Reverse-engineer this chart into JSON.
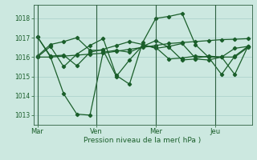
{
  "background_color": "#cce8e0",
  "grid_color": "#a8cfc8",
  "line_color": "#1a5e2a",
  "xlabel": "Pression niveau de la mer( hPa )",
  "ylim": [
    1012.5,
    1018.7
  ],
  "yticks": [
    1013,
    1014,
    1015,
    1016,
    1017,
    1018
  ],
  "xtick_labels": [
    "Mar",
    "Ven",
    "Mer",
    "Jeu"
  ],
  "series": [
    {
      "x": [
        0,
        1,
        2,
        3,
        4,
        5,
        6,
        7,
        8,
        9,
        10,
        11,
        12,
        13,
        14,
        15,
        16
      ],
      "y": [
        1017.05,
        1016.0,
        1014.1,
        1013.05,
        1013.0,
        1016.25,
        1016.35,
        1016.25,
        1016.55,
        1016.85,
        1016.5,
        1015.85,
        1015.9,
        1015.85,
        1016.0,
        1016.0,
        1016.5
      ]
    },
    {
      "x": [
        0,
        1,
        2,
        3,
        4,
        5,
        6,
        7,
        8,
        9,
        10,
        11,
        12,
        13,
        14,
        15,
        16
      ],
      "y": [
        1017.05,
        1016.05,
        1016.1,
        1015.55,
        1016.25,
        1016.4,
        1016.6,
        1016.8,
        1016.65,
        1016.45,
        1016.55,
        1016.7,
        1015.95,
        1016.05,
        1016.0,
        1016.45,
        1016.55
      ]
    },
    {
      "x": [
        0,
        1,
        2,
        3,
        4,
        5,
        6,
        7,
        8,
        9,
        10,
        11,
        12,
        13,
        14,
        15,
        16
      ],
      "y": [
        1016.0,
        1016.0,
        1016.05,
        1016.1,
        1016.15,
        1016.2,
        1016.3,
        1016.4,
        1016.5,
        1016.6,
        1016.7,
        1016.75,
        1016.8,
        1016.85,
        1016.9,
        1016.92,
        1016.95
      ]
    },
    {
      "x": [
        0,
        1,
        2,
        3,
        4,
        5,
        6,
        7,
        8,
        9,
        10,
        11,
        12,
        13,
        14,
        15,
        16
      ],
      "y": [
        1016.0,
        1016.55,
        1015.5,
        1016.15,
        1016.6,
        1016.95,
        1015.05,
        1014.6,
        1016.75,
        1018.0,
        1018.1,
        1018.25,
        1016.65,
        1016.0,
        1016.0,
        1015.1,
        1016.55
      ]
    },
    {
      "x": [
        0,
        1,
        2,
        3,
        4,
        5,
        6,
        7,
        8,
        9,
        10,
        11,
        12,
        13,
        14,
        15,
        16
      ],
      "y": [
        1016.05,
        1016.65,
        1016.8,
        1017.0,
        1016.35,
        1016.35,
        1015.0,
        1015.85,
        1016.6,
        1016.5,
        1015.9,
        1015.95,
        1016.05,
        1016.0,
        1015.1,
        1016.05,
        1016.55
      ]
    }
  ],
  "vline_x_indices": [
    0,
    4.5,
    9,
    13.5
  ],
  "n_total_pts": 17,
  "xlim": [
    -0.3,
    16.3
  ]
}
